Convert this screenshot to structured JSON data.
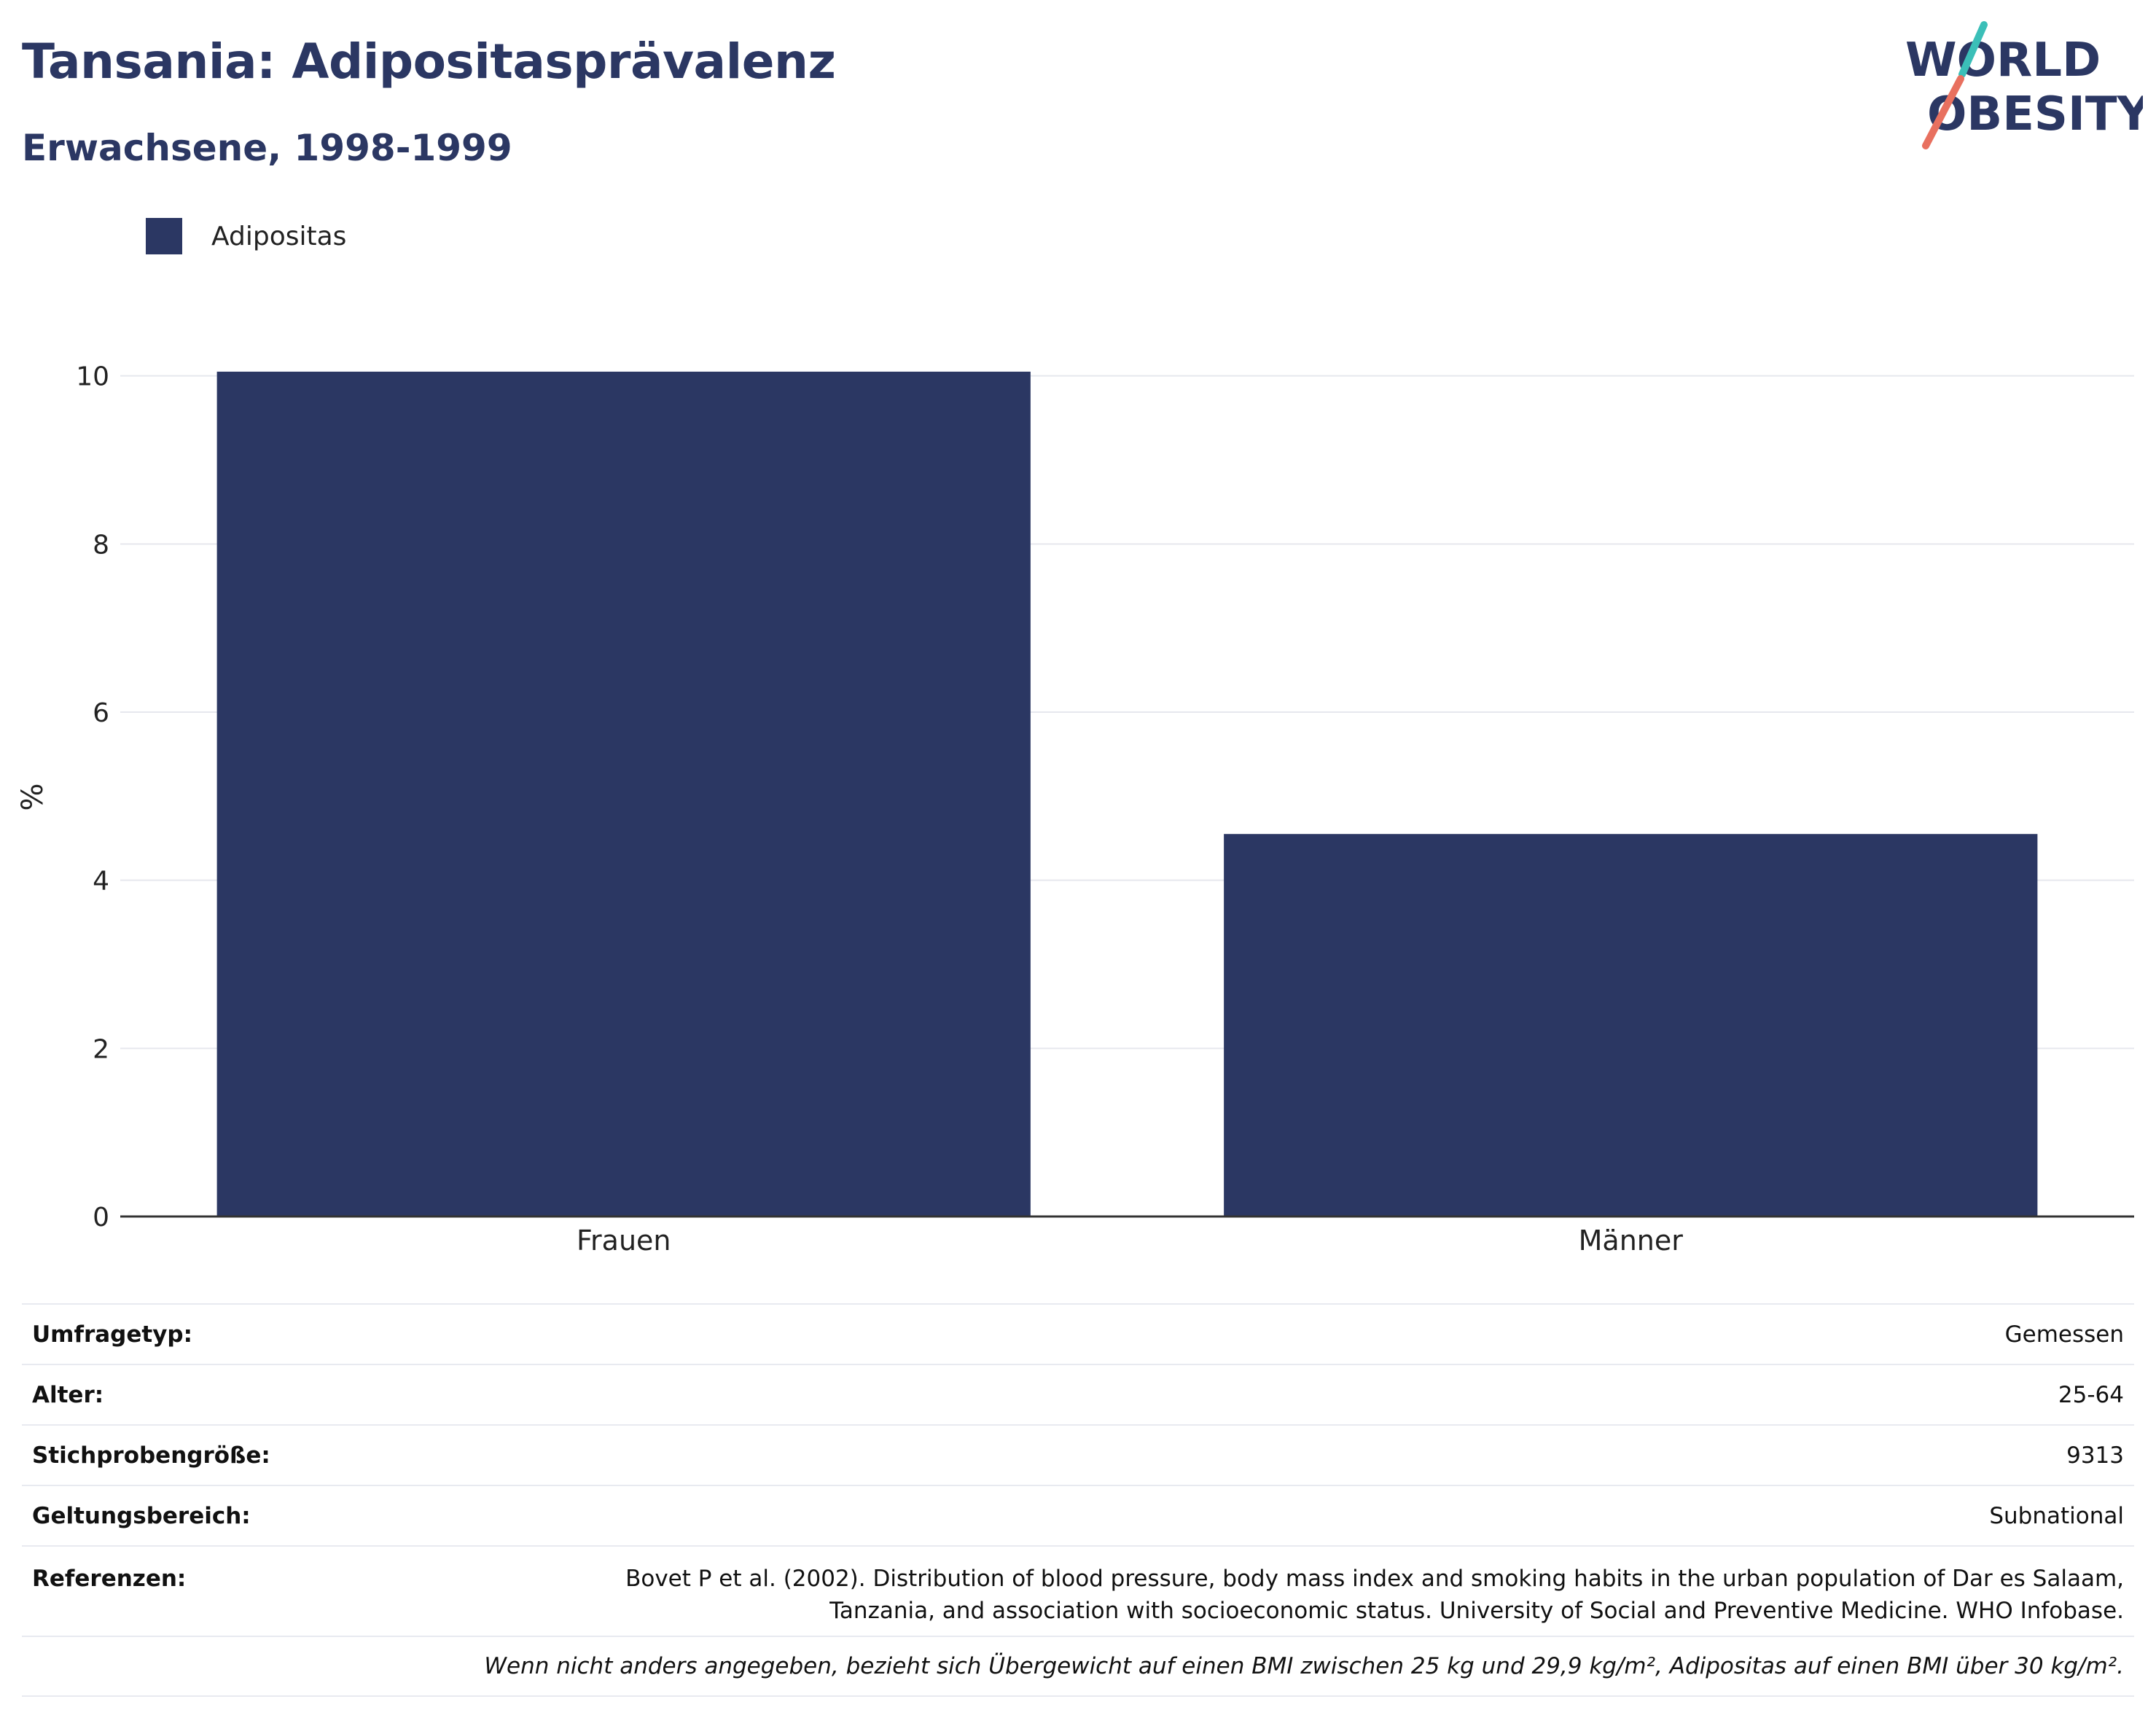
{
  "header": {
    "title": "Tansania: Adipositasprävalenz",
    "subtitle": "Erwachsene, 1998-1999"
  },
  "logo": {
    "line1": "WORLD",
    "line2": "OBESITY",
    "colors": {
      "text": "#2b3763",
      "slash_top": "#3bbfb8",
      "slash_bottom": "#e8705f"
    }
  },
  "legend": {
    "label": "Adipositas",
    "color": "#2b3763"
  },
  "chart_data": {
    "type": "bar",
    "categories": [
      "Frauen",
      "Männer"
    ],
    "series": [
      {
        "name": "Adipositas",
        "values": [
          10.05,
          4.55
        ],
        "color": "#2b3763"
      }
    ],
    "ylabel": "%",
    "ylim": [
      0,
      10.5
    ],
    "yticks": [
      0,
      2,
      4,
      6,
      8,
      10
    ],
    "grid": true,
    "legend_position": "top-left"
  },
  "meta": [
    {
      "key": "Umfragetyp:",
      "value": "Gemessen"
    },
    {
      "key": "Alter:",
      "value": "25-64"
    },
    {
      "key": "Stichprobengröße:",
      "value": "9313"
    },
    {
      "key": "Geltungsbereich:",
      "value": "Subnational"
    }
  ],
  "reference": {
    "key": "Referenzen:",
    "line1": "Bovet P et al. (2002). Distribution of blood pressure, body mass index and smoking habits in the urban population of Dar es Salaam,",
    "line2": "Tanzania, and association with socioeconomic status. University of Social and Preventive Medicine. WHO Infobase."
  },
  "note": "Wenn nicht anders angegeben, bezieht sich Übergewicht auf einen BMI zwischen 25 kg und 29,9 kg/m², Adipositas auf einen BMI über 30 kg/m²."
}
